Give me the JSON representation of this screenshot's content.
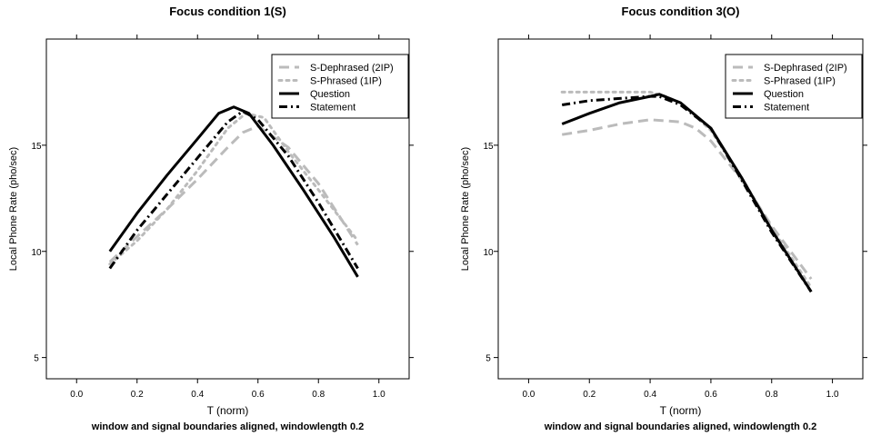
{
  "chart_data": [
    {
      "type": "line",
      "title": "Focus condition 1(S)",
      "subtitle": "window and signal boundaries aligned, windowlength 0.2",
      "xlabel": "T (norm)",
      "ylabel": "Local Phone Rate (pho/sec)",
      "xlim": [
        -0.1,
        1.1
      ],
      "ylim": [
        4,
        20
      ],
      "xticks": [
        "0.0",
        "0.2",
        "0.4",
        "0.6",
        "0.8",
        "1.0"
      ],
      "yticks": [
        "5",
        "10",
        "15"
      ],
      "legend_position": "top-right",
      "series": [
        {
          "name": "S-Dephrased (2IP)",
          "color": "#bbbbbb",
          "dash": "dashed",
          "x": [
            0.11,
            0.2,
            0.3,
            0.4,
            0.5,
            0.55,
            0.6,
            0.7,
            0.8,
            0.93
          ],
          "y": [
            9.5,
            10.7,
            12.0,
            13.4,
            14.9,
            15.6,
            15.9,
            14.9,
            13.2,
            10.3
          ]
        },
        {
          "name": "S-Phrased (1IP)",
          "color": "#bbbbbb",
          "dash": "dotted",
          "x": [
            0.11,
            0.2,
            0.3,
            0.4,
            0.5,
            0.56,
            0.62,
            0.7,
            0.8,
            0.93
          ],
          "y": [
            9.4,
            10.5,
            12.0,
            13.8,
            15.8,
            16.5,
            16.3,
            14.7,
            12.9,
            10.5
          ]
        },
        {
          "name": "Question",
          "color": "#000000",
          "dash": "solid",
          "x": [
            0.11,
            0.2,
            0.3,
            0.4,
            0.47,
            0.52,
            0.57,
            0.65,
            0.75,
            0.85,
            0.93
          ],
          "y": [
            10.0,
            11.8,
            13.6,
            15.3,
            16.5,
            16.8,
            16.5,
            15.0,
            12.9,
            10.7,
            8.8
          ]
        },
        {
          "name": "Statement",
          "color": "#000000",
          "dash": "dotdash",
          "x": [
            0.11,
            0.2,
            0.3,
            0.4,
            0.5,
            0.55,
            0.6,
            0.7,
            0.8,
            0.93
          ],
          "y": [
            9.2,
            11.0,
            12.7,
            14.4,
            16.1,
            16.6,
            16.2,
            14.5,
            12.3,
            9.2
          ]
        }
      ]
    },
    {
      "type": "line",
      "title": "Focus condition 3(O)",
      "subtitle": "window and signal boundaries aligned, windowlength 0.2",
      "xlabel": "T (norm)",
      "ylabel": "Local Phone Rate (pho/sec)",
      "xlim": [
        -0.1,
        1.1
      ],
      "ylim": [
        4,
        20
      ],
      "xticks": [
        "0.0",
        "0.2",
        "0.4",
        "0.6",
        "0.8",
        "1.0"
      ],
      "yticks": [
        "5",
        "10",
        "15"
      ],
      "legend_position": "top-right",
      "series": [
        {
          "name": "S-Dephrased (2IP)",
          "color": "#bbbbbb",
          "dash": "dashed",
          "x": [
            0.11,
            0.2,
            0.3,
            0.4,
            0.5,
            0.55,
            0.6,
            0.7,
            0.8,
            0.93
          ],
          "y": [
            15.5,
            15.7,
            16.0,
            16.2,
            16.1,
            15.8,
            15.2,
            13.4,
            11.2,
            8.7
          ]
        },
        {
          "name": "S-Phrased (1IP)",
          "color": "#bbbbbb",
          "dash": "dotted",
          "x": [
            0.11,
            0.2,
            0.3,
            0.4,
            0.45,
            0.5,
            0.6,
            0.7,
            0.8,
            0.93
          ],
          "y": [
            17.5,
            17.5,
            17.5,
            17.5,
            17.3,
            17.0,
            15.7,
            13.5,
            11.1,
            8.3
          ]
        },
        {
          "name": "Question",
          "color": "#000000",
          "dash": "solid",
          "x": [
            0.11,
            0.2,
            0.3,
            0.4,
            0.43,
            0.5,
            0.6,
            0.7,
            0.8,
            0.93
          ],
          "y": [
            16.0,
            16.5,
            17.0,
            17.3,
            17.4,
            17.0,
            15.8,
            13.5,
            11.0,
            8.1
          ]
        },
        {
          "name": "Statement",
          "color": "#000000",
          "dash": "dotdash",
          "x": [
            0.11,
            0.2,
            0.3,
            0.4,
            0.43,
            0.5,
            0.6,
            0.7,
            0.8,
            0.93
          ],
          "y": [
            16.9,
            17.1,
            17.2,
            17.3,
            17.3,
            16.9,
            15.8,
            13.4,
            10.9,
            8.1
          ]
        }
      ]
    }
  ]
}
